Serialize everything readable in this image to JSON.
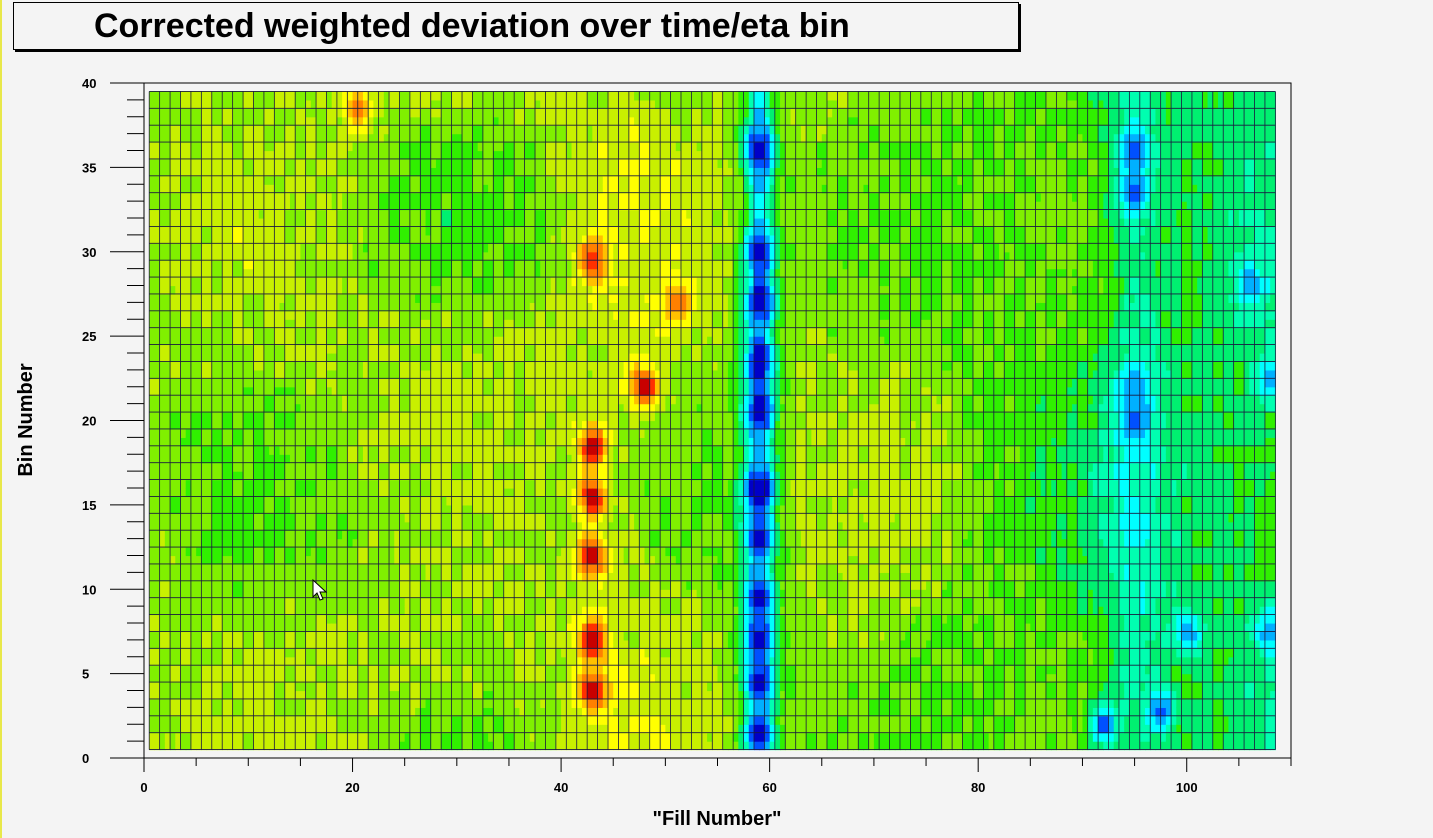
{
  "chart_data": {
    "type": "heatmap",
    "title": "Corrected weighted deviation over time/eta bin",
    "xlabel": "\"Fill Number\"",
    "ylabel": "Bin Number",
    "xlim": [
      0,
      110
    ],
    "ylim": [
      0,
      40
    ],
    "x_ticks": [
      "0",
      "20",
      "40",
      "60",
      "80",
      "100"
    ],
    "y_ticks": [
      "0",
      "5",
      "10",
      "15",
      "20",
      "25",
      "30",
      "35",
      "40"
    ],
    "grid": true,
    "x_bins": [
      1,
      108
    ],
    "y_bins": [
      1,
      39
    ],
    "palette": [
      "#0000c8",
      "#0050ff",
      "#00b0ff",
      "#00ffff",
      "#00ffb0",
      "#00f070",
      "#30f000",
      "#80f000",
      "#c8f000",
      "#ffff00",
      "#ffc000",
      "#ff8000",
      "#ff3000",
      "#c80000"
    ],
    "baseline_value": 0.55,
    "features": [
      {
        "x": 43,
        "y": 4,
        "value": 0.96
      },
      {
        "x": 43,
        "y": 7,
        "value": 0.97
      },
      {
        "x": 43,
        "y": 12,
        "value": 0.96
      },
      {
        "x": 43,
        "y": 15.5,
        "value": 0.97
      },
      {
        "x": 43,
        "y": 18.5,
        "value": 0.97
      },
      {
        "x": 43,
        "y": 29.5,
        "value": 0.93
      },
      {
        "x": 48,
        "y": 22,
        "value": 0.96
      },
      {
        "x": 51,
        "y": 27,
        "value": 0.86
      },
      {
        "x": 20.5,
        "y": 38.5,
        "value": 0.82
      },
      {
        "x": 59,
        "y": 1.5,
        "value": 0.05
      },
      {
        "x": 59,
        "y": 4.5,
        "value": 0.03
      },
      {
        "x": 59,
        "y": 7,
        "value": 0.04
      },
      {
        "x": 59,
        "y": 9.5,
        "value": 0.04
      },
      {
        "x": 59,
        "y": 13,
        "value": 0.06
      },
      {
        "x": 59,
        "y": 16,
        "value": 0.0
      },
      {
        "x": 59,
        "y": 20.5,
        "value": 0.02
      },
      {
        "x": 59,
        "y": 23.5,
        "value": 0.0
      },
      {
        "x": 59,
        "y": 27,
        "value": 0.0
      },
      {
        "x": 59,
        "y": 30,
        "value": 0.0
      },
      {
        "x": 59,
        "y": 36,
        "value": 0.0
      },
      {
        "x": 95,
        "y": 33.5,
        "value": 0.08
      },
      {
        "x": 95,
        "y": 36,
        "value": 0.1
      },
      {
        "x": 95,
        "y": 20,
        "value": 0.12
      },
      {
        "x": 95,
        "y": 22,
        "value": 0.15
      },
      {
        "x": 106,
        "y": 28,
        "value": 0.14
      },
      {
        "x": 108,
        "y": 22.5,
        "value": 0.16
      },
      {
        "x": 108,
        "y": 7.5,
        "value": 0.15
      },
      {
        "x": 92,
        "y": 2,
        "value": 0.12
      },
      {
        "x": 97.5,
        "y": 2.8,
        "value": 0.12
      },
      {
        "x": 100,
        "y": 7.5,
        "value": 0.15
      }
    ]
  }
}
